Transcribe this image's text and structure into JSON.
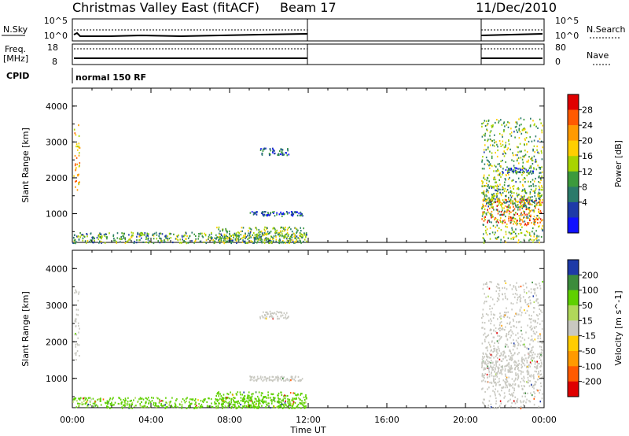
{
  "header": {
    "title": "Christmas Valley East (fitACF)",
    "beam": "Beam 17",
    "date": "11/Dec/2010"
  },
  "strip_nsky": {
    "left_label": "N.Sky",
    "right_label": "N.Search",
    "left_ticks": [
      "10^5",
      "10^0"
    ],
    "right_ticks": [
      "10^5",
      "10^0"
    ]
  },
  "strip_freq": {
    "left_label_top": "Freq.",
    "left_label_bottom": "[MHz]",
    "right_label": "Nave",
    "left_ticks": [
      "18",
      "8"
    ],
    "right_ticks": [
      "80",
      "0"
    ]
  },
  "cpid": {
    "label": "CPID",
    "value": "normal 150 RF"
  },
  "x_axis": {
    "label": "Time UT",
    "ticks": [
      "00:00",
      "04:00",
      "08:00",
      "12:00",
      "16:00",
      "20:00",
      "00:00"
    ],
    "range_hours": [
      0,
      24
    ]
  },
  "chart_data": [
    {
      "type": "heatmap",
      "ylabel": "Slant Range [km]",
      "ylim": [
        200,
        4500
      ],
      "y_ticks": [
        1000,
        2000,
        3000,
        4000
      ],
      "colorbar": {
        "label": "Power [dB]",
        "ticks": [
          "28",
          "24",
          "20",
          "16",
          "12",
          "8",
          "4"
        ],
        "colors": [
          "#e00000",
          "#ff5a00",
          "#ff9a00",
          "#ffcf00",
          "#a8d400",
          "#3c9a3c",
          "#2a7a6a",
          "#1e3aa8",
          "#1010ff"
        ]
      },
      "regions": [
        {
          "t0": 0.05,
          "t1": 0.35,
          "r0": 1500,
          "r1": 3500,
          "level": 20
        },
        {
          "t0": 0.0,
          "t1": 11.9,
          "r0": 200,
          "r1": 500,
          "level": 10
        },
        {
          "t0": 7.2,
          "t1": 11.9,
          "r0": 200,
          "r1": 650,
          "level": 12
        },
        {
          "t0": 9.5,
          "t1": 11.0,
          "r0": 2650,
          "r1": 2850,
          "level": 5
        },
        {
          "t0": 9.0,
          "t1": 11.7,
          "r0": 950,
          "r1": 1080,
          "level": 5
        },
        {
          "t0": 20.8,
          "t1": 23.9,
          "r0": 700,
          "r1": 1450,
          "level": 24
        },
        {
          "t0": 20.8,
          "t1": 23.9,
          "r0": 1200,
          "r1": 1800,
          "level": 10
        },
        {
          "t0": 21.8,
          "t1": 23.5,
          "r0": 2150,
          "r1": 2300,
          "level": 5
        },
        {
          "t0": 20.8,
          "t1": 23.9,
          "r0": 200,
          "r1": 3700,
          "level": 12
        }
      ]
    },
    {
      "type": "heatmap",
      "ylabel": "Slant Range [km]",
      "ylim": [
        200,
        4500
      ],
      "y_ticks": [
        1000,
        2000,
        3000,
        4000
      ],
      "colorbar": {
        "label": "Velocity [m s^-1]",
        "ticks": [
          "200",
          "100",
          "50",
          "15",
          "-15",
          "-50",
          "-100",
          "-200"
        ],
        "colors": [
          "#1e3aa8",
          "#3c8c3c",
          "#5fd000",
          "#b0d85a",
          "#c8c8c0",
          "#ffcc00",
          "#ff9a00",
          "#ff5a00",
          "#e00000"
        ]
      },
      "regions": [
        {
          "t0": 0.05,
          "t1": 0.35,
          "r0": 1500,
          "r1": 3500,
          "level": 0
        },
        {
          "t0": 0.0,
          "t1": 11.9,
          "r0": 200,
          "r1": 500,
          "level": 40
        },
        {
          "t0": 7.2,
          "t1": 11.9,
          "r0": 200,
          "r1": 650,
          "level": 50
        },
        {
          "t0": 9.5,
          "t1": 11.0,
          "r0": 2650,
          "r1": 2850,
          "level": 0
        },
        {
          "t0": 9.0,
          "t1": 11.7,
          "r0": 950,
          "r1": 1080,
          "level": 0
        },
        {
          "t0": 20.8,
          "t1": 23.9,
          "r0": 700,
          "r1": 1800,
          "level": 0
        },
        {
          "t0": 20.8,
          "t1": 23.9,
          "r0": 200,
          "r1": 3700,
          "level": 0
        }
      ]
    }
  ]
}
